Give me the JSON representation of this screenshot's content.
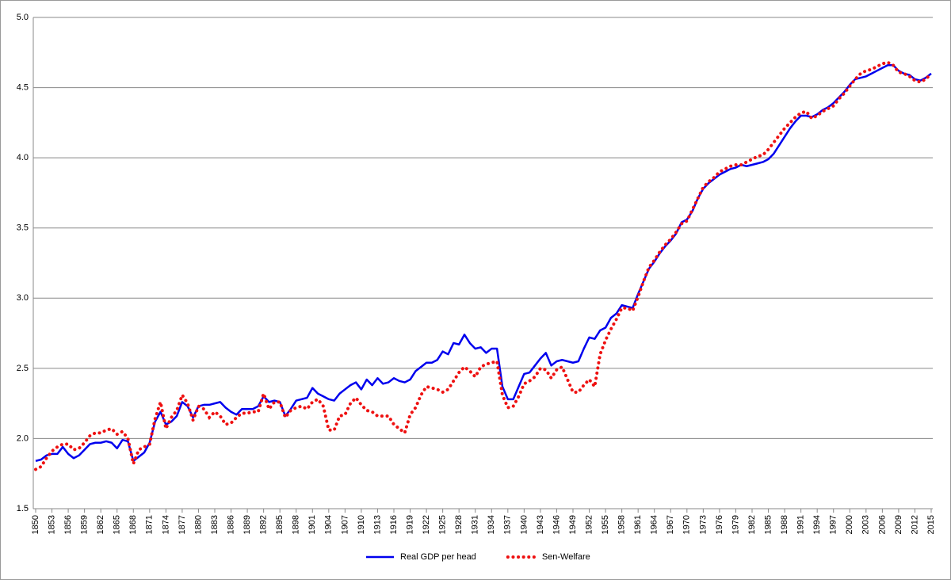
{
  "chart_data": {
    "type": "line",
    "x": [
      1850,
      1851,
      1852,
      1853,
      1854,
      1855,
      1856,
      1857,
      1858,
      1859,
      1860,
      1861,
      1862,
      1863,
      1864,
      1865,
      1866,
      1867,
      1868,
      1869,
      1870,
      1871,
      1872,
      1873,
      1874,
      1875,
      1876,
      1877,
      1878,
      1879,
      1880,
      1881,
      1882,
      1883,
      1884,
      1885,
      1886,
      1887,
      1888,
      1889,
      1890,
      1891,
      1892,
      1893,
      1894,
      1895,
      1896,
      1897,
      1898,
      1899,
      1900,
      1901,
      1902,
      1903,
      1904,
      1905,
      1906,
      1907,
      1908,
      1909,
      1910,
      1911,
      1912,
      1913,
      1914,
      1915,
      1916,
      1917,
      1918,
      1919,
      1920,
      1921,
      1922,
      1923,
      1924,
      1925,
      1926,
      1927,
      1928,
      1929,
      1930,
      1931,
      1932,
      1933,
      1934,
      1935,
      1936,
      1937,
      1938,
      1939,
      1940,
      1941,
      1942,
      1943,
      1944,
      1945,
      1946,
      1947,
      1948,
      1949,
      1950,
      1951,
      1952,
      1953,
      1954,
      1955,
      1956,
      1957,
      1958,
      1959,
      1960,
      1961,
      1962,
      1963,
      1964,
      1965,
      1966,
      1967,
      1968,
      1969,
      1970,
      1971,
      1972,
      1973,
      1974,
      1975,
      1976,
      1977,
      1978,
      1979,
      1980,
      1981,
      1982,
      1983,
      1984,
      1985,
      1986,
      1987,
      1988,
      1989,
      1990,
      1991,
      1992,
      1993,
      1994,
      1995,
      1996,
      1997,
      1998,
      1999,
      2000,
      2001,
      2002,
      2003,
      2004,
      2005,
      2006,
      2007,
      2008,
      2009,
      2010,
      2011,
      2012,
      2013,
      2014,
      2015
    ],
    "series": [
      {
        "name": "Real GDP per head",
        "color": "#0000ee",
        "style": "solid",
        "values": [
          1.84,
          1.85,
          1.88,
          1.89,
          1.89,
          1.94,
          1.89,
          1.86,
          1.88,
          1.92,
          1.96,
          1.97,
          1.97,
          1.98,
          1.97,
          1.93,
          1.99,
          1.98,
          1.84,
          1.87,
          1.9,
          1.97,
          2.12,
          2.19,
          2.1,
          2.12,
          2.16,
          2.26,
          2.23,
          2.15,
          2.23,
          2.24,
          2.24,
          2.25,
          2.26,
          2.22,
          2.19,
          2.17,
          2.21,
          2.21,
          2.21,
          2.23,
          2.3,
          2.26,
          2.27,
          2.26,
          2.16,
          2.21,
          2.27,
          2.28,
          2.29,
          2.36,
          2.32,
          2.3,
          2.28,
          2.27,
          2.32,
          2.35,
          2.38,
          2.4,
          2.35,
          2.42,
          2.38,
          2.43,
          2.39,
          2.4,
          2.43,
          2.41,
          2.4,
          2.42,
          2.48,
          2.51,
          2.54,
          2.54,
          2.56,
          2.62,
          2.6,
          2.68,
          2.67,
          2.74,
          2.68,
          2.64,
          2.65,
          2.61,
          2.64,
          2.64,
          2.37,
          2.28,
          2.28,
          2.37,
          2.46,
          2.47,
          2.52,
          2.57,
          2.61,
          2.52,
          2.55,
          2.56,
          2.55,
          2.54,
          2.55,
          2.64,
          2.72,
          2.71,
          2.77,
          2.79,
          2.86,
          2.89,
          2.95,
          2.94,
          2.93,
          3.03,
          3.12,
          3.21,
          3.26,
          3.32,
          3.37,
          3.41,
          3.46,
          3.54,
          3.56,
          3.62,
          3.71,
          3.78,
          3.82,
          3.85,
          3.88,
          3.9,
          3.92,
          3.93,
          3.95,
          3.94,
          3.95,
          3.96,
          3.97,
          3.99,
          4.03,
          4.09,
          4.15,
          4.21,
          4.26,
          4.3,
          4.3,
          4.29,
          4.31,
          4.34,
          4.36,
          4.39,
          4.43,
          4.47,
          4.52,
          4.56,
          4.57,
          4.58,
          4.6,
          4.62,
          4.64,
          4.66,
          4.66,
          4.62,
          4.6,
          4.59,
          4.56,
          4.55,
          4.57,
          4.6
        ]
      },
      {
        "name": "Sen-Welfare",
        "color": "#ee1111",
        "style": "dotted",
        "values": [
          1.78,
          1.8,
          1.86,
          1.91,
          1.94,
          1.96,
          1.96,
          1.92,
          1.93,
          1.97,
          2.02,
          2.04,
          2.04,
          2.06,
          2.07,
          2.03,
          2.05,
          2.0,
          1.82,
          1.92,
          1.94,
          1.96,
          2.14,
          2.26,
          2.07,
          2.15,
          2.2,
          2.31,
          2.25,
          2.13,
          2.23,
          2.21,
          2.15,
          2.19,
          2.16,
          2.1,
          2.11,
          2.15,
          2.18,
          2.18,
          2.19,
          2.19,
          2.32,
          2.21,
          2.26,
          2.26,
          2.15,
          2.2,
          2.22,
          2.23,
          2.21,
          2.26,
          2.28,
          2.23,
          2.06,
          2.06,
          2.16,
          2.17,
          2.25,
          2.29,
          2.24,
          2.2,
          2.19,
          2.16,
          2.16,
          2.16,
          2.1,
          2.07,
          2.04,
          2.17,
          2.22,
          2.31,
          2.37,
          2.36,
          2.35,
          2.33,
          2.35,
          2.41,
          2.47,
          2.51,
          2.48,
          2.44,
          2.51,
          2.53,
          2.54,
          2.55,
          2.31,
          2.22,
          2.23,
          2.3,
          2.39,
          2.41,
          2.44,
          2.5,
          2.49,
          2.43,
          2.49,
          2.51,
          2.42,
          2.33,
          2.33,
          2.38,
          2.42,
          2.37,
          2.6,
          2.7,
          2.78,
          2.85,
          2.93,
          2.93,
          2.91,
          3.01,
          3.12,
          3.22,
          3.27,
          3.33,
          3.38,
          3.42,
          3.47,
          3.53,
          3.55,
          3.63,
          3.71,
          3.79,
          3.83,
          3.86,
          3.9,
          3.92,
          3.94,
          3.95,
          3.95,
          3.97,
          3.99,
          4.01,
          4.02,
          4.06,
          4.11,
          4.16,
          4.21,
          4.25,
          4.29,
          4.32,
          4.33,
          4.28,
          4.3,
          4.33,
          4.35,
          4.37,
          4.42,
          4.46,
          4.51,
          4.56,
          4.6,
          4.62,
          4.63,
          4.65,
          4.67,
          4.68,
          4.66,
          4.61,
          4.6,
          4.58,
          4.55,
          4.54,
          4.56,
          4.6
        ]
      }
    ],
    "xlim": [
      1850,
      2015
    ],
    "xticks": [
      1850,
      1853,
      1856,
      1859,
      1862,
      1865,
      1868,
      1871,
      1874,
      1877,
      1880,
      1883,
      1886,
      1889,
      1892,
      1895,
      1898,
      1901,
      1904,
      1907,
      1910,
      1913,
      1916,
      1919,
      1922,
      1925,
      1928,
      1931,
      1934,
      1937,
      1940,
      1943,
      1946,
      1949,
      1952,
      1955,
      1958,
      1961,
      1964,
      1967,
      1970,
      1973,
      1976,
      1979,
      1982,
      1985,
      1988,
      1991,
      1994,
      1997,
      2000,
      2003,
      2006,
      2009,
      2012,
      2015
    ],
    "ylim": [
      1.5,
      5.0
    ],
    "yticks": [
      {
        "value": 1.5,
        "label": "1.5"
      },
      {
        "value": 2,
        "label": "2.0"
      },
      {
        "value": 2.5,
        "label": "2.5"
      },
      {
        "value": 3,
        "label": "3.0"
      },
      {
        "value": 3.5,
        "label": "3.5"
      },
      {
        "value": 4,
        "label": "4.0"
      },
      {
        "value": 4.5,
        "label": "4.5"
      },
      {
        "value": 5,
        "label": "5.0"
      }
    ],
    "grid": true,
    "legend": "bottom"
  }
}
